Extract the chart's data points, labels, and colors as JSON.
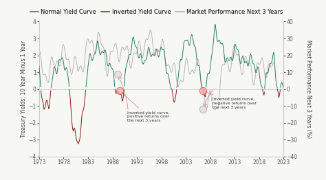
{
  "ylabel_left": "Treasury Yields: 10 Year Minus 1 Year",
  "ylabel_right": "Market Performance Next 3 Years (%)",
  "ylim_left": [
    -4,
    4
  ],
  "ylim_right": [
    -40,
    40
  ],
  "xlim": [
    1973,
    2023
  ],
  "xticks": [
    1973,
    1978,
    1983,
    1988,
    1993,
    1998,
    2003,
    2008,
    2013,
    2018,
    2023
  ],
  "yticks_left": [
    -4,
    -3,
    -2,
    -1,
    0,
    1,
    2,
    3,
    4
  ],
  "yticks_right": [
    -40,
    -30,
    -20,
    -10,
    0,
    10,
    20,
    30,
    40
  ],
  "color_normal": "#2e7d5e",
  "color_inverted": "#8b1a1a",
  "color_market": "#aaaaaa",
  "color_zero_line": "#cccccc",
  "legend_fontsize": 6,
  "label_fontsize": 5.5,
  "tick_fontsize": 5.5,
  "background_color": "#f7f7f3"
}
